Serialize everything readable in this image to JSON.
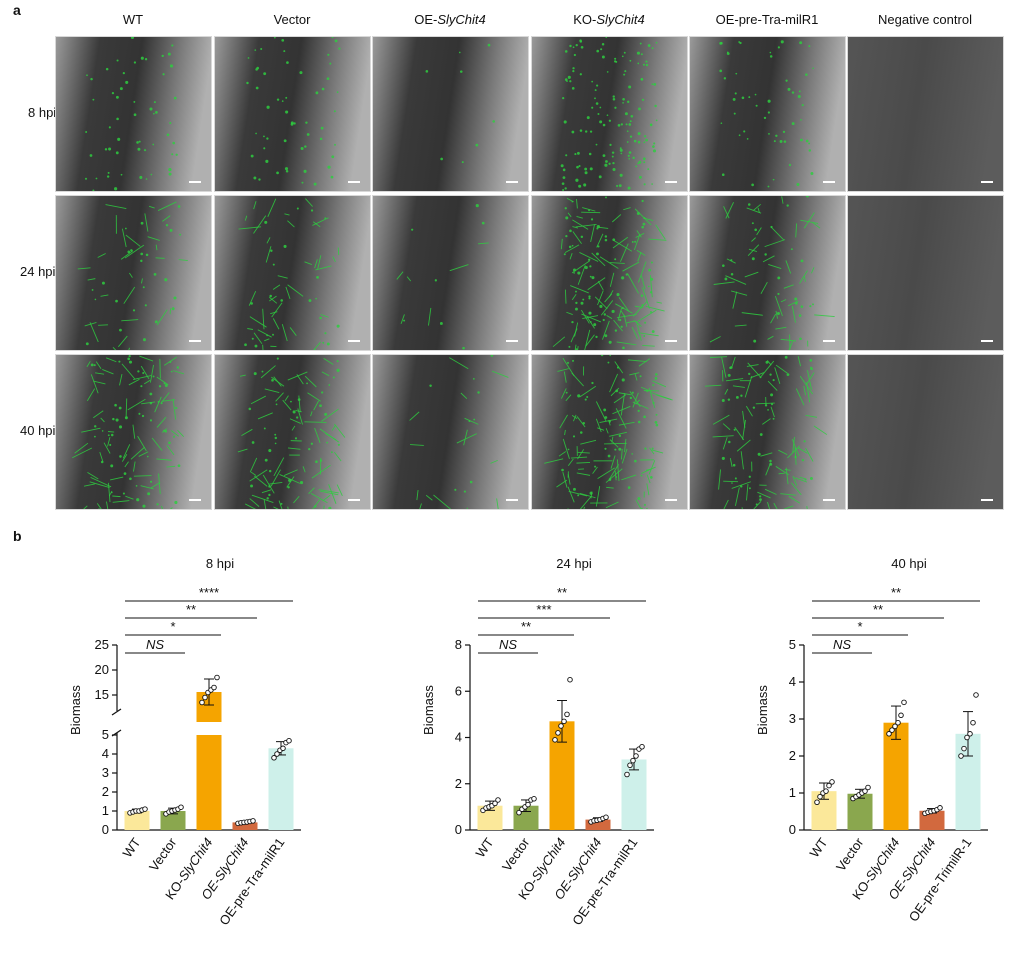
{
  "panel_a": {
    "letter": "a",
    "columns": [
      {
        "prefix": "",
        "italic": "",
        "text": "WT"
      },
      {
        "prefix": "",
        "italic": "",
        "text": "Vector"
      },
      {
        "prefix": "OE-",
        "italic": "SlyChit4",
        "text": ""
      },
      {
        "prefix": "KO-",
        "italic": "SlyChit4",
        "text": ""
      },
      {
        "prefix": "",
        "italic": "",
        "text": "OE-pre-Tra-milR1"
      },
      {
        "prefix": "",
        "italic": "",
        "text": "Negative control"
      }
    ],
    "rows": [
      "8 hpi",
      "24 hpi",
      "40 hpi"
    ],
    "fluorescence_color": "#2ecc40",
    "background_color": "#8a8a8a"
  },
  "panel_b": {
    "letter": "b"
  },
  "chart_data": [
    {
      "type": "bar",
      "title": "8 hpi",
      "ylabel": "Biomass",
      "categories": [
        {
          "prefix": "",
          "italic": "",
          "suffix": "WT"
        },
        {
          "prefix": "",
          "italic": "",
          "suffix": "Vector"
        },
        {
          "prefix": "KO-",
          "italic": "SlyChit4",
          "suffix": ""
        },
        {
          "prefix": "",
          "italic": "OE-SlyChit4",
          "suffix": ""
        },
        {
          "prefix": "",
          "italic": "",
          "suffix": "OE-pre-Tra-milR1"
        }
      ],
      "values": [
        1.0,
        1.0,
        15.6,
        0.4,
        4.3
      ],
      "errors": [
        0.1,
        0.15,
        2.6,
        0.05,
        0.35
      ],
      "points": [
        [
          0.9,
          0.95,
          1.0,
          1.0,
          1.05,
          1.1
        ],
        [
          0.85,
          0.95,
          1.0,
          1.05,
          1.1,
          1.2
        ],
        [
          13.5,
          14.5,
          15.5,
          16.0,
          16.5,
          18.5
        ],
        [
          0.35,
          0.38,
          0.4,
          0.42,
          0.45,
          0.48
        ],
        [
          3.8,
          4.0,
          4.2,
          4.3,
          4.6,
          4.7
        ]
      ],
      "colors": [
        "#fbe89a",
        "#8aa74e",
        "#f5a400",
        "#d2693e",
        "#cef0ea"
      ],
      "ylim": [
        0,
        25
      ],
      "axis_break": {
        "lower": [
          0,
          5
        ],
        "upper": [
          12,
          25
        ]
      },
      "yticks": [
        "0",
        "1",
        "2",
        "3",
        "4",
        "5",
        "15",
        "20",
        "25"
      ],
      "comparisons": [
        {
          "to": 1,
          "label": "NS",
          "italic": true
        },
        {
          "to": 2,
          "label": "*",
          "italic": false
        },
        {
          "to": 3,
          "label": "**",
          "italic": false
        },
        {
          "to": 4,
          "label": "****",
          "italic": false
        }
      ]
    },
    {
      "type": "bar",
      "title": "24 hpi",
      "ylabel": "Biomass",
      "categories": [
        {
          "prefix": "",
          "italic": "",
          "suffix": "WT"
        },
        {
          "prefix": "",
          "italic": "",
          "suffix": "Vector"
        },
        {
          "prefix": "KO-",
          "italic": "SlyChit4",
          "suffix": ""
        },
        {
          "prefix": "",
          "italic": "OE-SlyChit4",
          "suffix": ""
        },
        {
          "prefix": "",
          "italic": "",
          "suffix": "OE-pre-Tra-milR1"
        }
      ],
      "values": [
        1.05,
        1.05,
        4.7,
        0.45,
        3.05
      ],
      "errors": [
        0.2,
        0.25,
        0.9,
        0.08,
        0.45
      ],
      "points": [
        [
          0.85,
          0.95,
          1.0,
          1.05,
          1.15,
          1.3
        ],
        [
          0.75,
          0.9,
          1.0,
          1.1,
          1.3,
          1.35
        ],
        [
          3.9,
          4.2,
          4.5,
          4.7,
          5.0,
          6.5
        ],
        [
          0.35,
          0.4,
          0.42,
          0.45,
          0.5,
          0.55
        ],
        [
          2.4,
          2.8,
          3.0,
          3.2,
          3.5,
          3.6
        ]
      ],
      "colors": [
        "#fbe89a",
        "#8aa74e",
        "#f5a400",
        "#d2693e",
        "#cef0ea"
      ],
      "ylim": [
        0,
        8
      ],
      "yticks": [
        "0",
        "2",
        "4",
        "6",
        "8"
      ],
      "comparisons": [
        {
          "to": 1,
          "label": "NS",
          "italic": true
        },
        {
          "to": 2,
          "label": "**",
          "italic": false
        },
        {
          "to": 3,
          "label": "***",
          "italic": false
        },
        {
          "to": 4,
          "label": "**",
          "italic": false
        }
      ]
    },
    {
      "type": "bar",
      "title": "40 hpi",
      "ylabel": "Biomass",
      "categories": [
        {
          "prefix": "",
          "italic": "",
          "suffix": "WT"
        },
        {
          "prefix": "",
          "italic": "",
          "suffix": "Vector"
        },
        {
          "prefix": "KO-",
          "italic": "SlyChit4",
          "suffix": ""
        },
        {
          "prefix": "",
          "italic": "OE-SlyChit4",
          "suffix": ""
        },
        {
          "prefix": "",
          "italic": "",
          "suffix": "OE-pre-TrimilR-1"
        }
      ],
      "values": [
        1.05,
        0.98,
        2.9,
        0.52,
        2.6
      ],
      "errors": [
        0.22,
        0.12,
        0.45,
        0.06,
        0.6
      ],
      "points": [
        [
          0.75,
          0.9,
          1.0,
          1.05,
          1.2,
          1.3
        ],
        [
          0.85,
          0.9,
          0.95,
          1.0,
          1.05,
          1.15
        ],
        [
          2.6,
          2.7,
          2.8,
          2.9,
          3.1,
          3.45
        ],
        [
          0.45,
          0.48,
          0.5,
          0.52,
          0.55,
          0.6
        ],
        [
          2.0,
          2.2,
          2.5,
          2.6,
          2.9,
          3.65
        ]
      ],
      "colors": [
        "#fbe89a",
        "#8aa74e",
        "#f5a400",
        "#d2693e",
        "#cef0ea"
      ],
      "ylim": [
        0,
        5
      ],
      "yticks": [
        "0",
        "1",
        "2",
        "3",
        "4",
        "5"
      ],
      "comparisons": [
        {
          "to": 1,
          "label": "NS",
          "italic": true
        },
        {
          "to": 2,
          "label": "*",
          "italic": false
        },
        {
          "to": 3,
          "label": "**",
          "italic": false
        },
        {
          "to": 4,
          "label": "**",
          "italic": false
        }
      ]
    }
  ]
}
